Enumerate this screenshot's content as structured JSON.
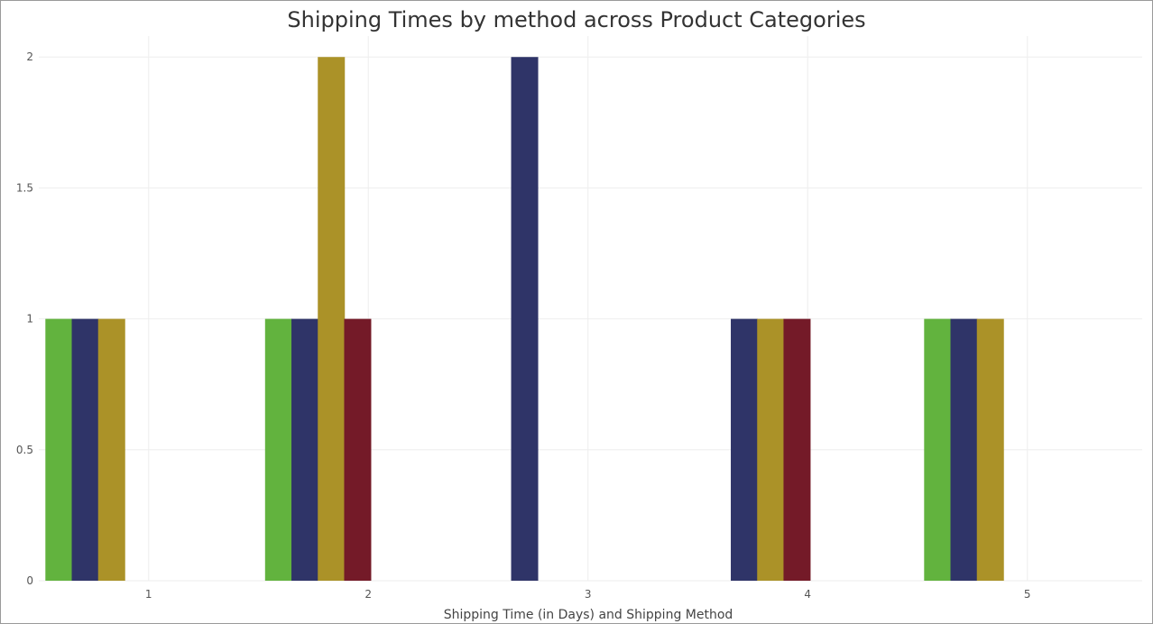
{
  "chart_data": {
    "type": "bar",
    "title": "Shipping Times by method across Product Categories",
    "xlabel": "Shipping Time (in Days) and Shipping Method",
    "ylabel": "",
    "x_ticks": [
      "1",
      "2",
      "3",
      "4",
      "5"
    ],
    "y_ticks": [
      "0",
      "0.5",
      "1",
      "1.5",
      "2"
    ],
    "ylim": [
      0,
      2.08
    ],
    "grid": true,
    "colors": {
      "green": "#62b33e",
      "navy": "#2f3468",
      "gold": "#ab9228",
      "maroon": "#741a28"
    },
    "bars": [
      {
        "x": 0.53,
        "value": 1,
        "color": "green"
      },
      {
        "x": 0.65,
        "value": 1,
        "color": "navy"
      },
      {
        "x": 0.77,
        "value": 1,
        "color": "gold"
      },
      {
        "x": 1.53,
        "value": 1,
        "color": "green"
      },
      {
        "x": 1.65,
        "value": 1,
        "color": "navy"
      },
      {
        "x": 1.77,
        "value": 2,
        "color": "gold"
      },
      {
        "x": 1.89,
        "value": 1,
        "color": "maroon"
      },
      {
        "x": 2.65,
        "value": 2,
        "color": "navy"
      },
      {
        "x": 3.65,
        "value": 1,
        "color": "navy"
      },
      {
        "x": 3.77,
        "value": 1,
        "color": "gold"
      },
      {
        "x": 3.89,
        "value": 1,
        "color": "maroon"
      },
      {
        "x": 4.53,
        "value": 1,
        "color": "green"
      },
      {
        "x": 4.65,
        "value": 1,
        "color": "navy"
      },
      {
        "x": 4.77,
        "value": 1,
        "color": "gold"
      }
    ]
  }
}
